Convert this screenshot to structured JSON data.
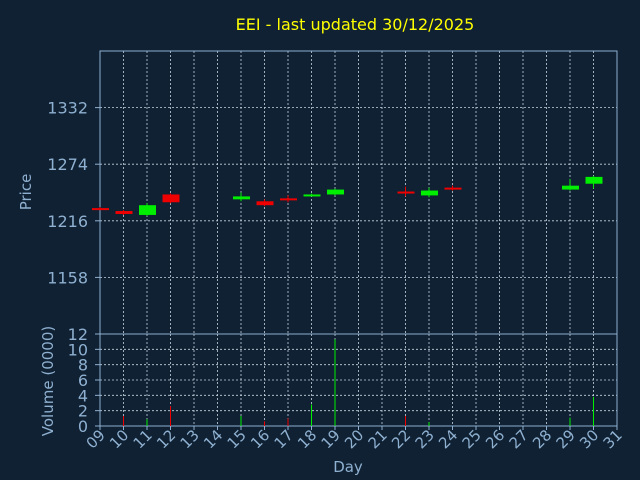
{
  "chart_data": [
    {
      "type": "candlestick",
      "title": "EEI - last updated 30/12/2025",
      "ylabel": "Price",
      "xlabel": "Day",
      "ylim": [
        1100,
        1390
      ],
      "yticks": [
        1158,
        1216,
        1274,
        1332
      ],
      "x_ticks": [
        "09",
        "10",
        "11",
        "12",
        "13",
        "14",
        "15",
        "16",
        "17",
        "18",
        "19",
        "20",
        "21",
        "22",
        "23",
        "24",
        "25",
        "26",
        "27",
        "28",
        "29",
        "30",
        "31"
      ],
      "grid": true,
      "colors": {
        "up": "#00ee00",
        "down": "#ee0000",
        "title": "#ffff00",
        "axis_text": "#8fb0d0",
        "background": "#0f2133"
      },
      "candles": [
        {
          "day": 9,
          "open": 1229,
          "close": 1228,
          "high": 1230,
          "low": 1227
        },
        {
          "day": 10,
          "open": 1226,
          "close": 1223,
          "high": 1227,
          "low": 1222
        },
        {
          "day": 11,
          "open": 1222,
          "close": 1232,
          "high": 1234,
          "low": 1221
        },
        {
          "day": 12,
          "open": 1243,
          "close": 1235,
          "high": 1244,
          "low": 1234
        },
        {
          "day": 15,
          "open": 1238,
          "close": 1241,
          "high": 1245,
          "low": 1236
        },
        {
          "day": 16,
          "open": 1236,
          "close": 1232,
          "high": 1238,
          "low": 1231
        },
        {
          "day": 17,
          "open": 1239,
          "close": 1237,
          "high": 1242,
          "low": 1235
        },
        {
          "day": 18,
          "open": 1242,
          "close": 1243,
          "high": 1244,
          "low": 1241
        },
        {
          "day": 19,
          "open": 1243,
          "close": 1248,
          "high": 1249,
          "low": 1242
        },
        {
          "day": 22,
          "open": 1246,
          "close": 1244,
          "high": 1251,
          "low": 1241
        },
        {
          "day": 23,
          "open": 1242,
          "close": 1247,
          "high": 1250,
          "low": 1240
        },
        {
          "day": 24,
          "open": 1250,
          "close": 1248,
          "high": 1252,
          "low": 1247
        },
        {
          "day": 29,
          "open": 1248,
          "close": 1252,
          "high": 1259,
          "low": 1247
        },
        {
          "day": 30,
          "open": 1254,
          "close": 1261,
          "high": 1262,
          "low": 1249
        }
      ]
    },
    {
      "type": "bar",
      "ylabel": "Volume (0000)",
      "ylim": [
        0,
        12
      ],
      "yticks": [
        0,
        2,
        4,
        6,
        8,
        10,
        12
      ],
      "x_ticks": [
        "09",
        "10",
        "11",
        "12",
        "13",
        "14",
        "15",
        "16",
        "17",
        "18",
        "19",
        "20",
        "21",
        "22",
        "23",
        "24",
        "25",
        "26",
        "27",
        "28",
        "29",
        "30",
        "31"
      ],
      "bars": [
        {
          "day": 10,
          "value": 1.3,
          "color": "#ee0000"
        },
        {
          "day": 11,
          "value": 0.9,
          "color": "#00ee00"
        },
        {
          "day": 12,
          "value": 2.6,
          "color": "#ee0000"
        },
        {
          "day": 15,
          "value": 1.3,
          "color": "#00ee00"
        },
        {
          "day": 16,
          "value": 0.6,
          "color": "#ee0000"
        },
        {
          "day": 17,
          "value": 1.0,
          "color": "#ee0000"
        },
        {
          "day": 18,
          "value": 2.8,
          "color": "#00ee00"
        },
        {
          "day": 19,
          "value": 11.3,
          "color": "#00ee00"
        },
        {
          "day": 22,
          "value": 1.3,
          "color": "#ee0000"
        },
        {
          "day": 23,
          "value": 0.5,
          "color": "#00ee00"
        },
        {
          "day": 29,
          "value": 1.1,
          "color": "#00ee00"
        },
        {
          "day": 30,
          "value": 3.8,
          "color": "#00ee00"
        }
      ]
    }
  ]
}
